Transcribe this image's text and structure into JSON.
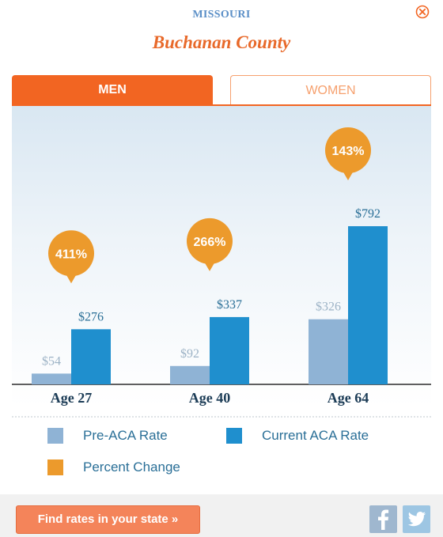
{
  "header": {
    "state": "MISSOURI",
    "county": "Buchanan County",
    "close_icon": "close-icon"
  },
  "tabs": [
    {
      "label": "MEN",
      "active": true
    },
    {
      "label": "WOMEN",
      "active": false
    }
  ],
  "colors": {
    "pre_aca": "#8fb3d5",
    "current_aca": "#1f8fce",
    "percent_change": "#ec9a2c",
    "accent": "#f26522"
  },
  "chart_data": {
    "type": "bar",
    "categories": [
      "Age 27",
      "Age 40",
      "Age 64"
    ],
    "series": [
      {
        "name": "Pre-ACA Rate",
        "values": [
          54,
          92,
          326
        ],
        "labels": [
          "$54",
          "$92",
          "$326"
        ]
      },
      {
        "name": "Current ACA Rate",
        "values": [
          276,
          337,
          792
        ],
        "labels": [
          "$276",
          "$337",
          "$792"
        ]
      }
    ],
    "percent_change": [
      "411%",
      "266%",
      "143%"
    ],
    "ylim": [
      0,
      1000
    ],
    "grid": false,
    "legend_position": "bottom"
  },
  "legend": [
    {
      "label": "Pre-ACA Rate",
      "color": "#8fb3d5"
    },
    {
      "label": "Current ACA Rate",
      "color": "#1f8fce"
    },
    {
      "label": "Percent Change",
      "color": "#ec9a2c"
    }
  ],
  "footer": {
    "cta_label": "Find rates in your state »",
    "facebook_icon": "facebook-icon",
    "twitter_icon": "twitter-icon"
  }
}
